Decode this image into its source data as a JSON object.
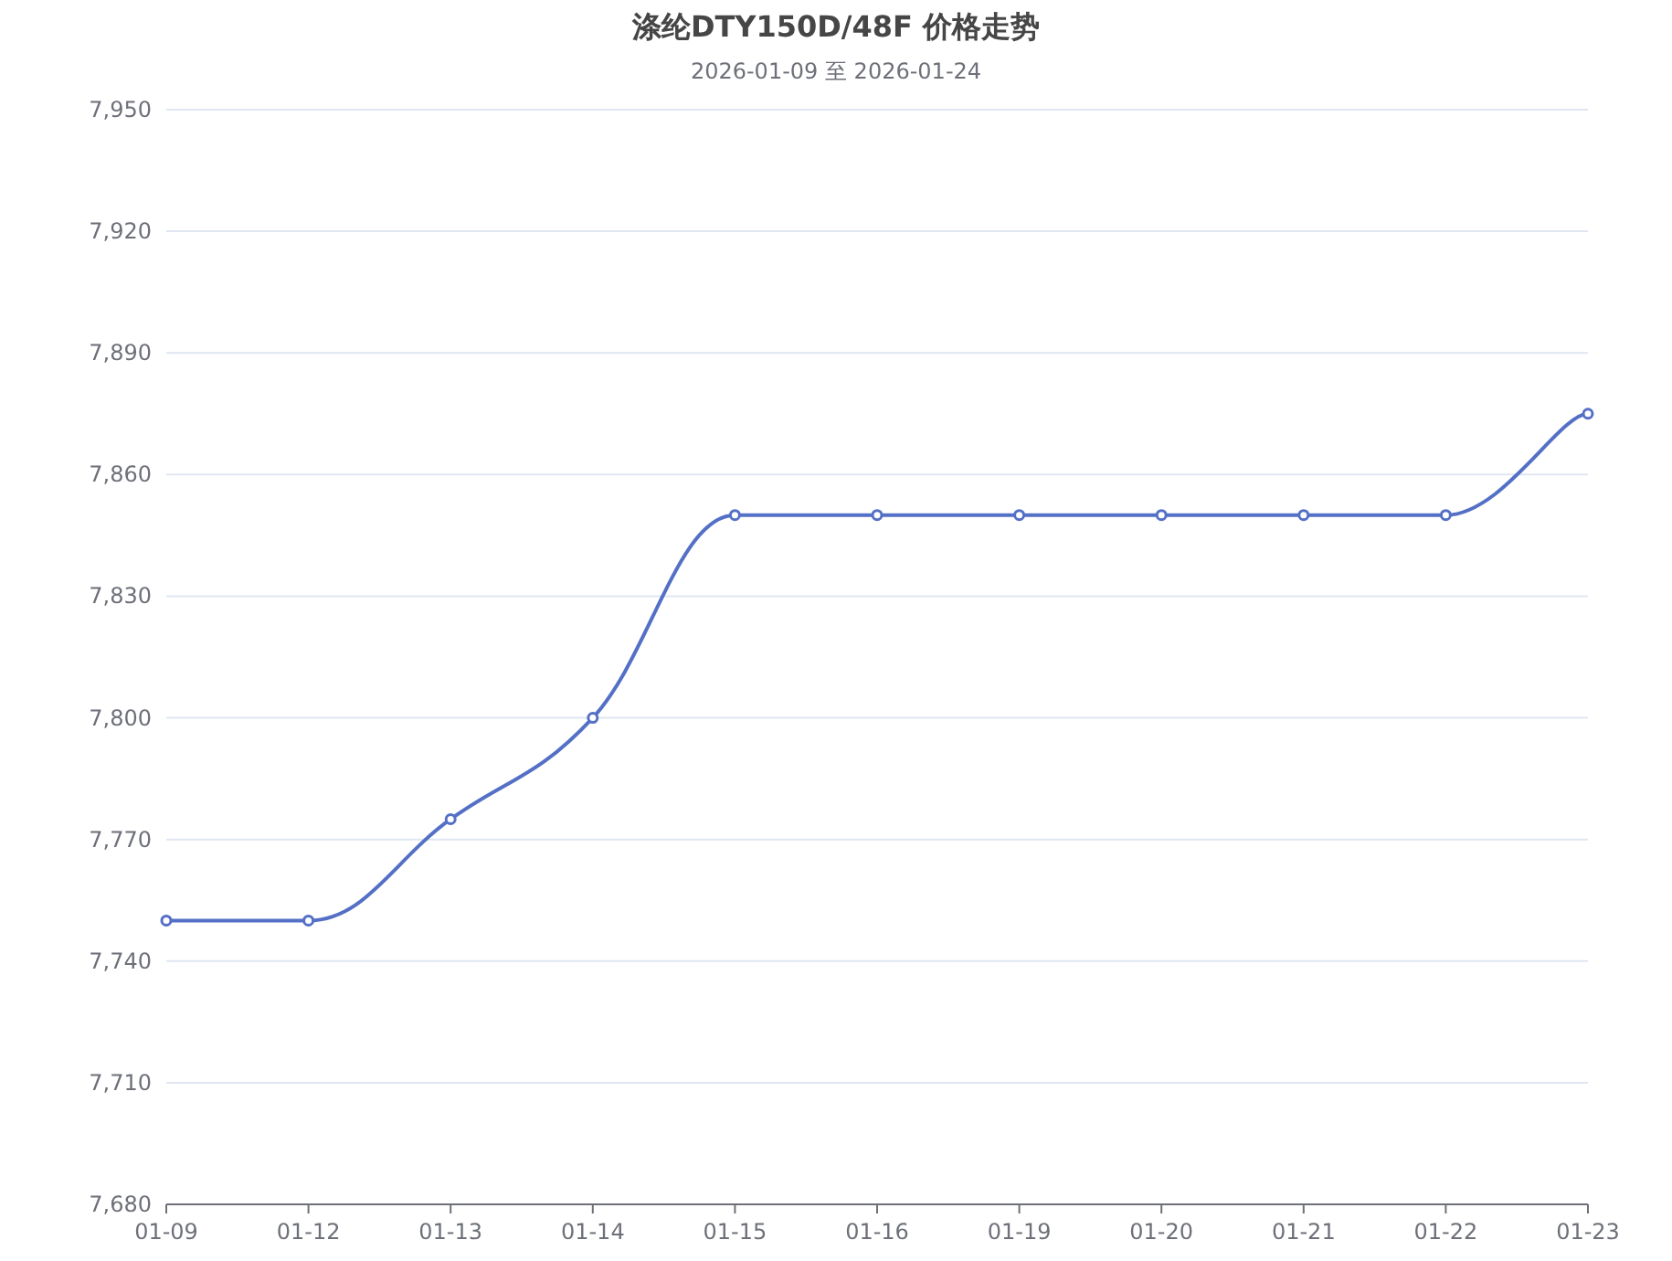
{
  "chart_data": {
    "type": "line",
    "title": "涤纶DTY150D/48F 价格走势",
    "subtitle": "2026-01-09 至 2026-01-24",
    "categories": [
      "01-09",
      "01-12",
      "01-13",
      "01-14",
      "01-15",
      "01-16",
      "01-19",
      "01-20",
      "01-21",
      "01-22",
      "01-23"
    ],
    "series": [
      {
        "color": "#5470c6",
        "values": [
          7750,
          7750,
          7775,
          7800,
          7850,
          7850,
          7850,
          7850,
          7850,
          7850,
          7875
        ]
      }
    ],
    "ylim": [
      7680,
      7950
    ],
    "yticks": [
      {
        "value": 7680,
        "label": "7,680"
      },
      {
        "value": 7710,
        "label": "7,710"
      },
      {
        "value": 7740,
        "label": "7,740"
      },
      {
        "value": 7770,
        "label": "7,770"
      },
      {
        "value": 7800,
        "label": "7,800"
      },
      {
        "value": 7830,
        "label": "7,830"
      },
      {
        "value": 7860,
        "label": "7,860"
      },
      {
        "value": 7890,
        "label": "7,890"
      },
      {
        "value": 7920,
        "label": "7,920"
      },
      {
        "value": 7950,
        "label": "7,950"
      }
    ],
    "grid": "y",
    "marker": "circle",
    "line_style": "solid"
  }
}
